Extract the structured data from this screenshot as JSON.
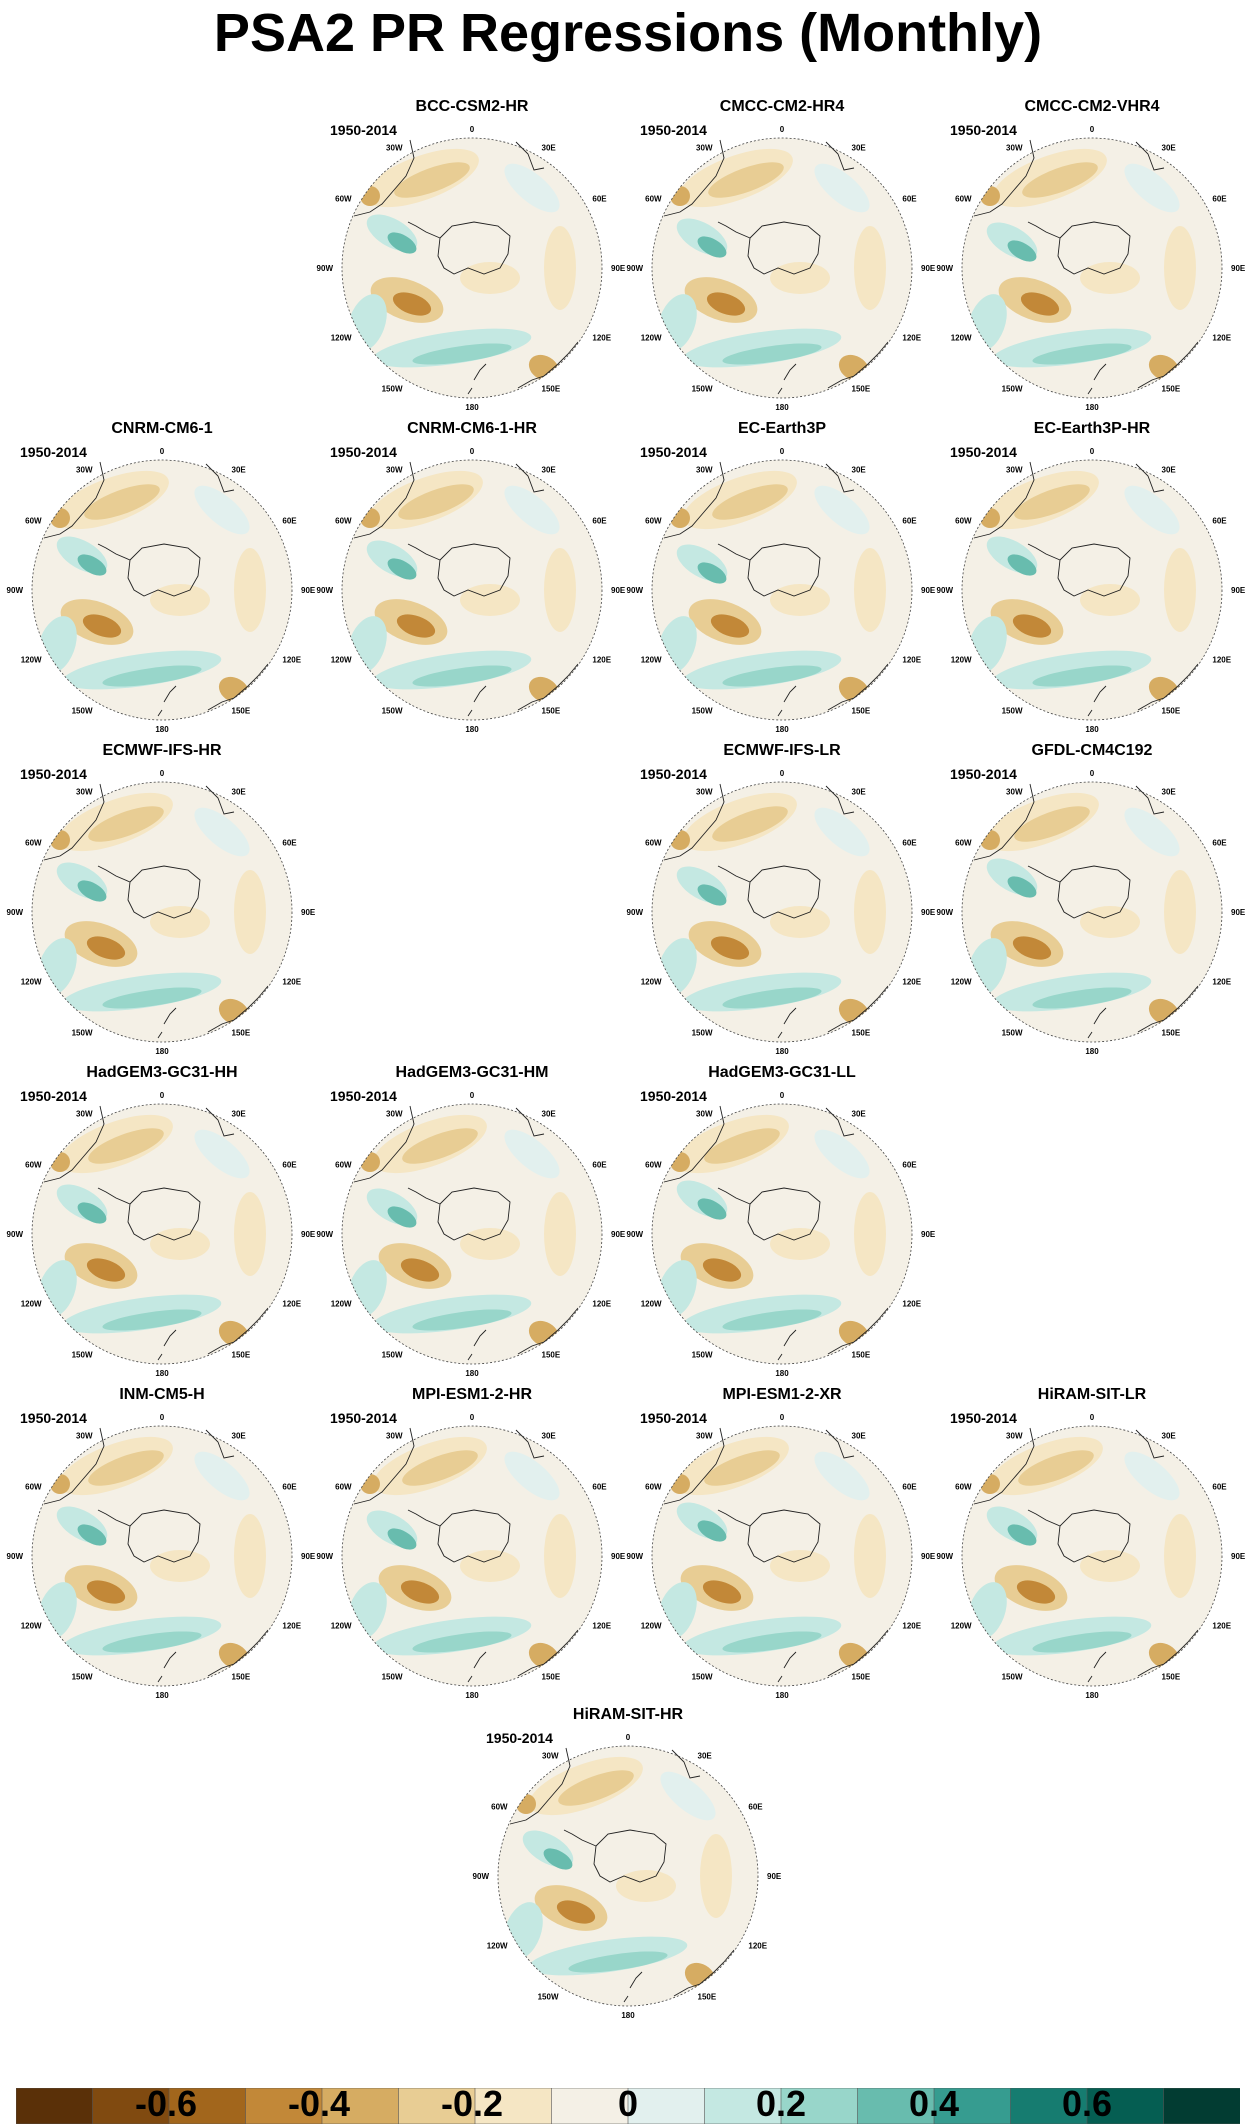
{
  "title": "PSA2 PR Regressions (Monthly)",
  "period": "1950-2014",
  "longitude_labels": [
    "0",
    "30E",
    "60E",
    "90E",
    "120E",
    "150E",
    "180",
    "150W",
    "120W",
    "90W",
    "60W",
    "30W"
  ],
  "panels": [
    {
      "name": "BCC-CSM2-HR"
    },
    {
      "name": "CMCC-CM2-HR4"
    },
    {
      "name": "CMCC-CM2-VHR4"
    },
    {
      "name": "CNRM-CM6-1"
    },
    {
      "name": "CNRM-CM6-1-HR"
    },
    {
      "name": "EC-Earth3P"
    },
    {
      "name": "EC-Earth3P-HR"
    },
    {
      "name": "ECMWF-IFS-HR"
    },
    {
      "name": "ECMWF-IFS-LR"
    },
    {
      "name": "GFDL-CM4C192"
    },
    {
      "name": "HadGEM3-GC31-HH"
    },
    {
      "name": "HadGEM3-GC31-HM"
    },
    {
      "name": "HadGEM3-GC31-LL"
    },
    {
      "name": "INM-CM5-H"
    },
    {
      "name": "MPI-ESM1-2-HR"
    },
    {
      "name": "MPI-ESM1-2-XR"
    },
    {
      "name": "HiRAM-SIT-LR"
    },
    {
      "name": "HiRAM-SIT-HR"
    }
  ],
  "colorbar": {
    "colors": [
      "#5a3008",
      "#804a10",
      "#a2661c",
      "#c28838",
      "#d6ac62",
      "#e8cd94",
      "#f5e6c4",
      "#f4f0e6",
      "#e2f0ee",
      "#c4e8e2",
      "#98d6ca",
      "#68bcae",
      "#369c90",
      "#167c70",
      "#055e52",
      "#023c32"
    ],
    "tick_labels": [
      "-0.6",
      "-0.4",
      "-0.2",
      "0",
      "0.2",
      "0.4",
      "0.6"
    ]
  }
}
